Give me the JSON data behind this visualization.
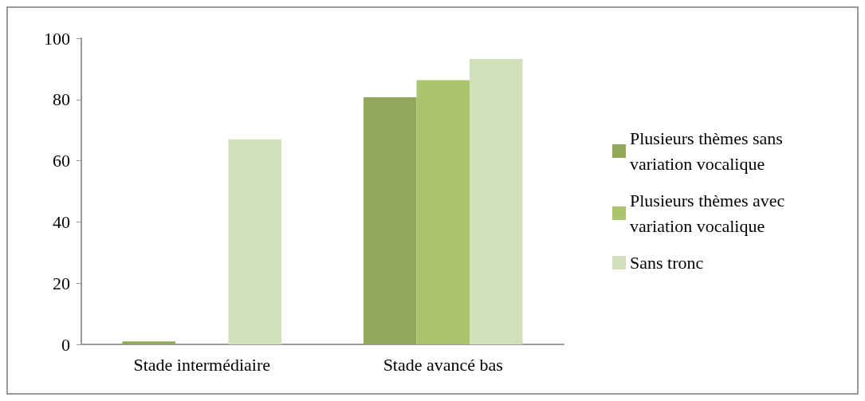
{
  "chart_data": {
    "type": "bar",
    "categories": [
      "Stade intermédiaire",
      "Stade avancé bas"
    ],
    "series": [
      {
        "name": "Plusieurs thèmes sans variation vocalique",
        "color": "#93a75b",
        "values": [
          1,
          80.7
        ]
      },
      {
        "name": "Plusieurs thèmes avec variation vocalique",
        "color": "#abc56e",
        "values": [
          0,
          86.3
        ]
      },
      {
        "name": "Sans tronc",
        "color": "#d1dfbb",
        "values": [
          67,
          93.2
        ]
      }
    ],
    "ylim": [
      0,
      100
    ],
    "yticks": [
      0,
      20,
      40,
      60,
      80,
      100
    ],
    "grid": false,
    "legend": "right"
  }
}
